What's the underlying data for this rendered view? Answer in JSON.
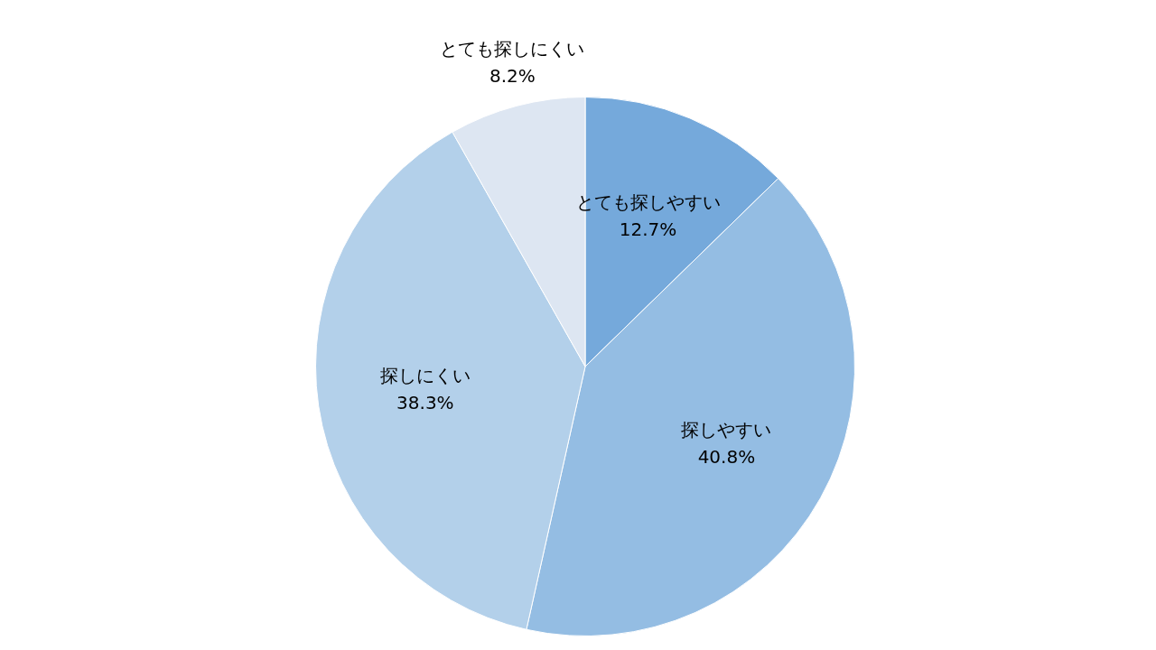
{
  "chart_data": {
    "type": "pie",
    "categories": [
      "とても探しやすい",
      "探しやすい",
      "探しにくい",
      "とても探しにくい"
    ],
    "values": [
      12.7,
      40.8,
      38.3,
      8.2
    ],
    "value_labels": [
      "12.7%",
      "40.8%",
      "38.3%",
      "8.2%"
    ],
    "colors": [
      "#75a9db",
      "#94bde3",
      "#b3d0ea",
      "#dde6f2"
    ],
    "data_labels": true
  }
}
